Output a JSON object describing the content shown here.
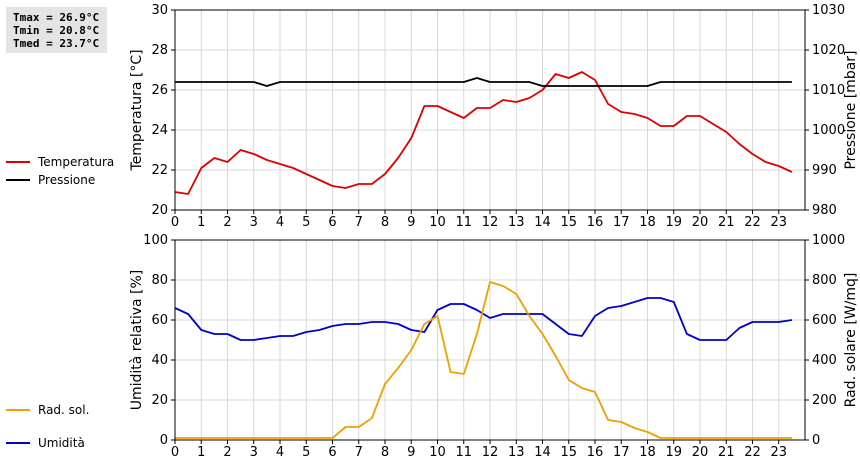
{
  "stats": {
    "tmax": "Tmax = 26.9°C",
    "tmin": "Tmin = 20.8°C",
    "tmed": "Tmed = 23.7°C"
  },
  "chart_data": [
    {
      "type": "line",
      "x": [
        0,
        0.5,
        1,
        1.5,
        2,
        2.5,
        3,
        3.5,
        4,
        4.5,
        5,
        5.5,
        6,
        6.5,
        7,
        7.5,
        8,
        8.5,
        9,
        9.5,
        10,
        10.5,
        11,
        11.5,
        12,
        12.5,
        13,
        13.5,
        14,
        14.5,
        15,
        15.5,
        16,
        16.5,
        17,
        17.5,
        18,
        18.5,
        19,
        19.5,
        20,
        20.5,
        21,
        21.5,
        22,
        22.5,
        23,
        23.5
      ],
      "xlim": [
        0,
        24
      ],
      "xticks": [
        "0",
        "1",
        "2",
        "3",
        "4",
        "5",
        "6",
        "7",
        "8",
        "9",
        "10",
        "11",
        "12",
        "13",
        "14",
        "15",
        "16",
        "17",
        "18",
        "19",
        "20",
        "21",
        "22",
        "23"
      ],
      "ylabel": "Temperatura [°C]",
      "ylim": [
        20,
        30
      ],
      "yticks": [
        "20",
        "22",
        "24",
        "26",
        "28",
        "30"
      ],
      "y2label": "Pressione [mbar]",
      "y2lim": [
        980,
        1030
      ],
      "y2ticks": [
        "980",
        "990",
        "1000",
        "1010",
        "1020",
        "1030"
      ],
      "legend_placement": "left",
      "grid": true,
      "series": [
        {
          "name": "Temperatura",
          "color": "#dd0000",
          "axis": "left",
          "values": [
            20.9,
            20.8,
            22.1,
            22.6,
            22.4,
            23.0,
            22.8,
            22.5,
            22.3,
            22.1,
            21.8,
            21.5,
            21.2,
            21.1,
            21.3,
            21.3,
            21.8,
            22.6,
            23.6,
            25.2,
            25.2,
            24.9,
            24.6,
            25.1,
            25.1,
            25.5,
            25.4,
            25.6,
            26.0,
            26.8,
            26.6,
            26.9,
            26.5,
            25.3,
            24.9,
            24.8,
            24.6,
            24.2,
            24.2,
            24.7,
            24.7,
            24.3,
            23.9,
            23.3,
            22.8,
            22.4,
            22.2,
            21.9
          ]
        },
        {
          "name": "Pressione",
          "color": "#000000",
          "axis": "right",
          "values": [
            1012,
            1012,
            1012,
            1012,
            1012,
            1012,
            1012,
            1011,
            1012,
            1012,
            1012,
            1012,
            1012,
            1012,
            1012,
            1012,
            1012,
            1012,
            1012,
            1012,
            1012,
            1012,
            1012,
            1013,
            1012,
            1012,
            1012,
            1012,
            1011,
            1011,
            1011,
            1011,
            1011,
            1011,
            1011,
            1011,
            1011,
            1012,
            1012,
            1012,
            1012,
            1012,
            1012,
            1012,
            1012,
            1012,
            1012,
            1012
          ]
        }
      ]
    },
    {
      "type": "line",
      "x": [
        0,
        0.5,
        1,
        1.5,
        2,
        2.5,
        3,
        3.5,
        4,
        4.5,
        5,
        5.5,
        6,
        6.5,
        7,
        7.5,
        8,
        8.5,
        9,
        9.5,
        10,
        10.5,
        11,
        11.5,
        12,
        12.5,
        13,
        13.5,
        14,
        14.5,
        15,
        15.5,
        16,
        16.5,
        17,
        17.5,
        18,
        18.5,
        19,
        19.5,
        20,
        20.5,
        21,
        21.5,
        22,
        22.5,
        23,
        23.5
      ],
      "xlim": [
        0,
        24
      ],
      "xticks": [
        "0",
        "1",
        "2",
        "3",
        "4",
        "5",
        "6",
        "7",
        "8",
        "9",
        "10",
        "11",
        "12",
        "13",
        "14",
        "15",
        "16",
        "17",
        "18",
        "19",
        "20",
        "21",
        "22",
        "23"
      ],
      "ylabel": "Umidità relativa [%]",
      "ylim": [
        0,
        100
      ],
      "yticks": [
        "0",
        "20",
        "40",
        "60",
        "80",
        "100"
      ],
      "y2label": "Rad. solare [W/mq]",
      "y2lim": [
        0,
        1000
      ],
      "y2ticks": [
        "0",
        "200",
        "400",
        "600",
        "800",
        "1000"
      ],
      "legend_placement": "left",
      "grid": true,
      "series": [
        {
          "name": "Umidità",
          "color": "#0000cc",
          "axis": "left",
          "values": [
            66,
            63,
            55,
            53,
            53,
            50,
            50,
            51,
            52,
            52,
            54,
            55,
            57,
            58,
            58,
            59,
            59,
            58,
            55,
            54,
            65,
            68,
            68,
            65,
            61,
            63,
            63,
            63,
            63,
            58,
            53,
            52,
            62,
            66,
            67,
            69,
            71,
            71,
            69,
            53,
            50,
            50,
            50,
            56,
            59,
            59,
            59,
            60
          ]
        },
        {
          "name": "Rad. sol.",
          "color": "#f0a000",
          "axis": "right",
          "values": [
            10,
            10,
            10,
            10,
            10,
            10,
            10,
            10,
            10,
            10,
            10,
            10,
            10,
            65,
            65,
            110,
            280,
            360,
            450,
            580,
            620,
            340,
            330,
            530,
            790,
            770,
            730,
            620,
            530,
            420,
            300,
            260,
            240,
            100,
            90,
            60,
            40,
            10,
            10,
            10,
            10,
            10,
            10,
            10,
            10,
            10,
            10,
            10
          ]
        }
      ]
    }
  ],
  "legend": {
    "temperatura": "Temperatura",
    "pressione": "Pressione",
    "umidita": "Umidità",
    "radsol": "Rad. sol."
  }
}
